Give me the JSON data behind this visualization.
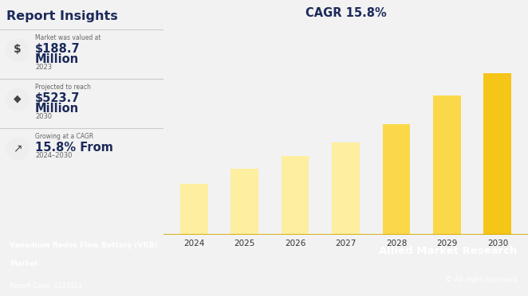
{
  "title": "Report Insights",
  "bar_years": [
    "2024",
    "2025",
    "2026",
    "2027",
    "2028",
    "2029",
    "2030"
  ],
  "bar_values": [
    1.0,
    1.3,
    1.55,
    1.82,
    2.18,
    2.75,
    3.2
  ],
  "bar_color_light": "#FDEEA0",
  "bar_color_dark": "#F5C518",
  "cagr_text": "CAGR 15.8%",
  "stat1_label": "Market was valued at",
  "stat1_value1": "$188.7",
  "stat1_value2": "Million",
  "stat1_year": "2023",
  "stat2_label": "Projected to reach",
  "stat2_value1": "$523.7",
  "stat2_value2": "Million",
  "stat2_year": "2030",
  "stat3_label": "Growing at a CAGR",
  "stat3_value": "15.8% From",
  "stat3_year": "2024–2030",
  "footer_left1": "Vanadium Redox Flow Battery (VRB)",
  "footer_left2": "Market",
  "footer_left3": "Report Code: A193313",
  "footer_right1": "Allied Market Research",
  "footer_right2": "© All right reserved",
  "footer_bg": "#1B2A5A",
  "main_bg": "#F2F2F2",
  "left_bg": "#FFFFFF",
  "title_color": "#1B2A5A",
  "stat_value_color": "#1B2A5A",
  "stat_label_color": "#666666",
  "separator_color": "#CCCCCC",
  "axis_line_color": "#D4A800"
}
